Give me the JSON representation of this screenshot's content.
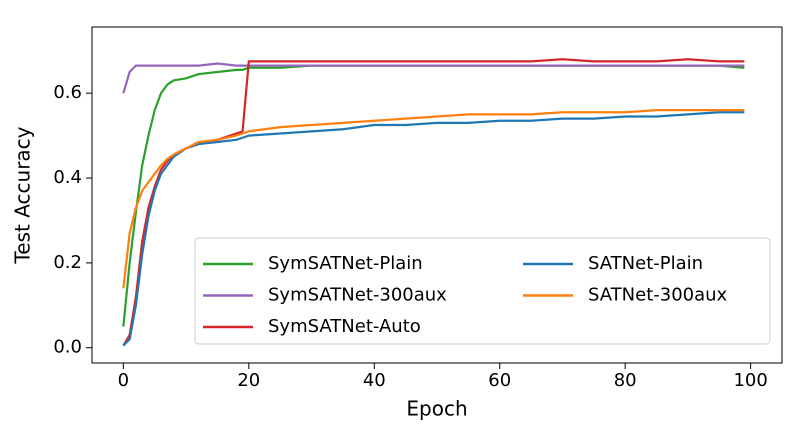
{
  "chart_data": {
    "type": "line",
    "x_label": "Epoch",
    "y_label": "Test Accuracy",
    "x": [
      0,
      1,
      2,
      3,
      4,
      5,
      6,
      7,
      8,
      10,
      12,
      15,
      18,
      19,
      20,
      25,
      30,
      35,
      40,
      45,
      50,
      55,
      60,
      65,
      70,
      75,
      80,
      85,
      90,
      95,
      99
    ],
    "series": [
      {
        "name": "SymSATNet-Plain",
        "color": "#2ca02c",
        "values": [
          0.05,
          0.2,
          0.32,
          0.43,
          0.5,
          0.56,
          0.6,
          0.62,
          0.63,
          0.635,
          0.645,
          0.65,
          0.655,
          0.655,
          0.66,
          0.66,
          0.665,
          0.665,
          0.665,
          0.665,
          0.665,
          0.665,
          0.665,
          0.665,
          0.665,
          0.665,
          0.665,
          0.665,
          0.665,
          0.665,
          0.66
        ]
      },
      {
        "name": "SymSATNet-300aux",
        "color": "#9467bd",
        "values": [
          0.6,
          0.65,
          0.665,
          0.665,
          0.665,
          0.665,
          0.665,
          0.665,
          0.665,
          0.665,
          0.665,
          0.67,
          0.665,
          0.665,
          0.665,
          0.665,
          0.665,
          0.665,
          0.665,
          0.665,
          0.665,
          0.665,
          0.665,
          0.665,
          0.665,
          0.665,
          0.665,
          0.665,
          0.665,
          0.665,
          0.665
        ]
      },
      {
        "name": "SymSATNet-Auto",
        "color": "#d62728",
        "values": [
          0.005,
          0.03,
          0.12,
          0.25,
          0.33,
          0.38,
          0.42,
          0.44,
          0.455,
          0.47,
          0.48,
          0.49,
          0.505,
          0.51,
          0.675,
          0.675,
          0.675,
          0.675,
          0.675,
          0.675,
          0.675,
          0.675,
          0.675,
          0.675,
          0.68,
          0.675,
          0.675,
          0.675,
          0.68,
          0.675,
          0.675
        ]
      },
      {
        "name": "SATNet-Plain",
        "color": "#1f77b4",
        "values": [
          0.005,
          0.02,
          0.1,
          0.22,
          0.31,
          0.37,
          0.41,
          0.43,
          0.45,
          0.47,
          0.48,
          0.485,
          0.49,
          0.495,
          0.5,
          0.505,
          0.51,
          0.515,
          0.525,
          0.525,
          0.53,
          0.53,
          0.535,
          0.535,
          0.54,
          0.54,
          0.545,
          0.545,
          0.55,
          0.555,
          0.555
        ]
      },
      {
        "name": "SATNet-300aux",
        "color": "#ff7f0e",
        "values": [
          0.14,
          0.27,
          0.33,
          0.37,
          0.39,
          0.41,
          0.43,
          0.445,
          0.455,
          0.47,
          0.485,
          0.49,
          0.5,
          0.505,
          0.51,
          0.52,
          0.525,
          0.53,
          0.535,
          0.54,
          0.545,
          0.55,
          0.55,
          0.55,
          0.555,
          0.555,
          0.555,
          0.56,
          0.56,
          0.56,
          0.56
        ]
      }
    ],
    "xlim": [
      -5,
      105
    ],
    "xticks": [
      0,
      20,
      40,
      60,
      80,
      100
    ],
    "ylim": [
      -0.036,
      0.756
    ],
    "yticks": [
      {
        "value": 0,
        "label": "0.0"
      },
      0.2,
      0.4,
      0.6
    ],
    "legend": "lower right",
    "legend_columns": 2
  }
}
